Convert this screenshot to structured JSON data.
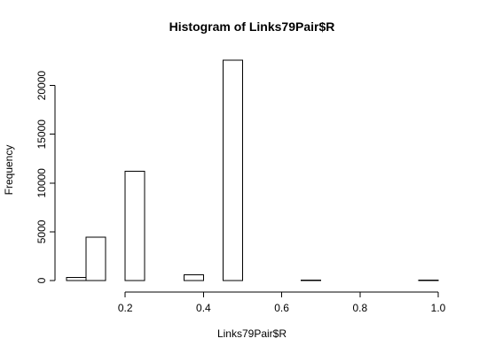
{
  "chart_data": {
    "type": "bar",
    "title": "Histogram of Links79Pair$R",
    "xlabel": "Links79Pair$R",
    "ylabel": "Frequency",
    "bin_edges": [
      0.05,
      0.1,
      0.15,
      0.2,
      0.25,
      0.3,
      0.35,
      0.4,
      0.45,
      0.5,
      0.55,
      0.6,
      0.65,
      0.7,
      0.75,
      0.8,
      0.85,
      0.9,
      0.95,
      1.0
    ],
    "values": [
      300,
      4450,
      0,
      11200,
      0,
      0,
      600,
      0,
      22600,
      0,
      0,
      0,
      40,
      0,
      0,
      0,
      0,
      0,
      40
    ],
    "xlim": [
      0.05,
      1.0
    ],
    "ylim": [
      0,
      22600
    ],
    "x_ticks": [
      "0.2",
      "0.4",
      "0.6",
      "0.8",
      "1.0"
    ],
    "y_ticks": [
      "0",
      "5000",
      "10000",
      "15000",
      "20000"
    ],
    "grid": false
  }
}
